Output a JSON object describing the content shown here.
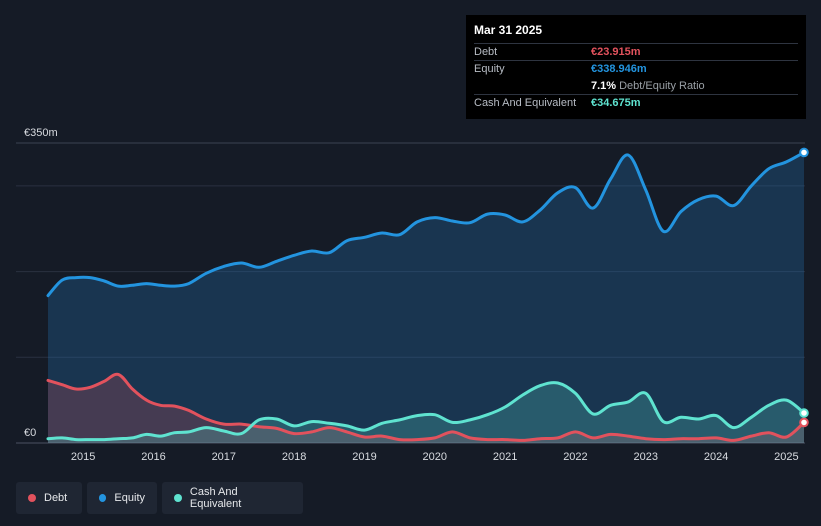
{
  "tooltip": {
    "date": "Mar 31 2025",
    "debt_label": "Debt",
    "debt_value": "€23.915m",
    "equity_label": "Equity",
    "equity_value": "€338.946m",
    "ratio_value": "7.1%",
    "ratio_label": "Debt/Equity Ratio",
    "cash_label": "Cash And Equivalent",
    "cash_value": "€34.675m"
  },
  "legend": {
    "debt": "Debt",
    "equity": "Equity",
    "cash": "Cash And Equivalent"
  },
  "colors": {
    "debt": "#e2525d",
    "equity": "#2394df",
    "cash": "#5fe3d0",
    "background": "#151b26"
  },
  "chart_data": {
    "type": "area",
    "title": "",
    "xlabel": "",
    "ylabel": "",
    "y_top_label": "€350m",
    "y_bottom_label": "€0",
    "ylim": [
      0,
      350
    ],
    "xlim": [
      2014.5,
      2025.25
    ],
    "x_ticks": [
      2015,
      2016,
      2017,
      2018,
      2019,
      2020,
      2021,
      2022,
      2023,
      2024,
      2025
    ],
    "x_tick_labels": [
      "2015",
      "2016",
      "2017",
      "2018",
      "2019",
      "2020",
      "2021",
      "2022",
      "2023",
      "2024",
      "2025"
    ],
    "series": [
      {
        "name": "Equity",
        "x": [
          2014.5,
          2014.7,
          2014.9,
          2015.1,
          2015.3,
          2015.5,
          2015.7,
          2015.9,
          2016.1,
          2016.3,
          2016.5,
          2016.75,
          2017.0,
          2017.25,
          2017.5,
          2017.75,
          2018.0,
          2018.25,
          2018.5,
          2018.75,
          2019.0,
          2019.25,
          2019.5,
          2019.75,
          2020.0,
          2020.25,
          2020.5,
          2020.75,
          2021.0,
          2021.25,
          2021.5,
          2021.75,
          2022.0,
          2022.25,
          2022.5,
          2022.75,
          2023.0,
          2023.25,
          2023.5,
          2023.75,
          2024.0,
          2024.25,
          2024.5,
          2024.75,
          2025.0,
          2025.25
        ],
        "values": [
          172,
          190,
          193,
          193,
          189,
          183,
          184,
          186,
          184,
          183,
          186,
          198,
          206,
          210,
          205,
          212,
          219,
          224,
          222,
          236,
          240,
          245,
          243,
          258,
          263,
          259,
          257,
          267,
          266,
          258,
          272,
          292,
          298,
          274,
          308,
          336,
          295,
          247,
          270,
          284,
          288,
          277,
          300,
          320,
          328,
          339
        ]
      },
      {
        "name": "Debt",
        "x": [
          2014.5,
          2014.7,
          2014.9,
          2015.1,
          2015.3,
          2015.5,
          2015.7,
          2015.9,
          2016.1,
          2016.3,
          2016.5,
          2016.75,
          2017.0,
          2017.25,
          2017.5,
          2017.75,
          2018.0,
          2018.25,
          2018.5,
          2018.75,
          2019.0,
          2019.25,
          2019.5,
          2019.75,
          2020.0,
          2020.25,
          2020.5,
          2020.75,
          2021.0,
          2021.25,
          2021.5,
          2021.75,
          2022.0,
          2022.25,
          2022.5,
          2022.75,
          2023.0,
          2023.25,
          2023.5,
          2023.75,
          2024.0,
          2024.25,
          2024.5,
          2024.75,
          2025.0,
          2025.25
        ],
        "values": [
          73,
          68,
          63,
          65,
          72,
          80,
          63,
          50,
          44,
          43,
          38,
          28,
          22,
          22,
          19,
          17,
          11,
          13,
          18,
          13,
          7,
          8,
          4,
          4,
          6,
          13,
          6,
          4,
          4,
          3,
          5,
          6,
          13,
          6,
          10,
          8,
          5,
          4,
          5,
          5,
          6,
          3,
          8,
          12,
          7,
          24
        ]
      },
      {
        "name": "Cash And Equivalent",
        "x": [
          2014.5,
          2014.7,
          2014.9,
          2015.1,
          2015.3,
          2015.5,
          2015.7,
          2015.9,
          2016.1,
          2016.3,
          2016.5,
          2016.75,
          2017.0,
          2017.25,
          2017.5,
          2017.75,
          2018.0,
          2018.25,
          2018.5,
          2018.75,
          2019.0,
          2019.25,
          2019.5,
          2019.75,
          2020.0,
          2020.25,
          2020.5,
          2020.75,
          2021.0,
          2021.25,
          2021.5,
          2021.75,
          2022.0,
          2022.25,
          2022.5,
          2022.75,
          2023.0,
          2023.25,
          2023.5,
          2023.75,
          2024.0,
          2024.25,
          2024.5,
          2024.75,
          2025.0,
          2025.25
        ],
        "values": [
          5,
          6,
          4,
          4,
          4,
          5,
          6,
          10,
          8,
          12,
          13,
          18,
          14,
          11,
          27,
          28,
          20,
          25,
          23,
          20,
          15,
          23,
          27,
          32,
          33,
          24,
          27,
          33,
          42,
          56,
          67,
          70,
          58,
          34,
          44,
          48,
          58,
          25,
          30,
          28,
          32,
          18,
          30,
          44,
          50,
          35
        ]
      }
    ]
  }
}
